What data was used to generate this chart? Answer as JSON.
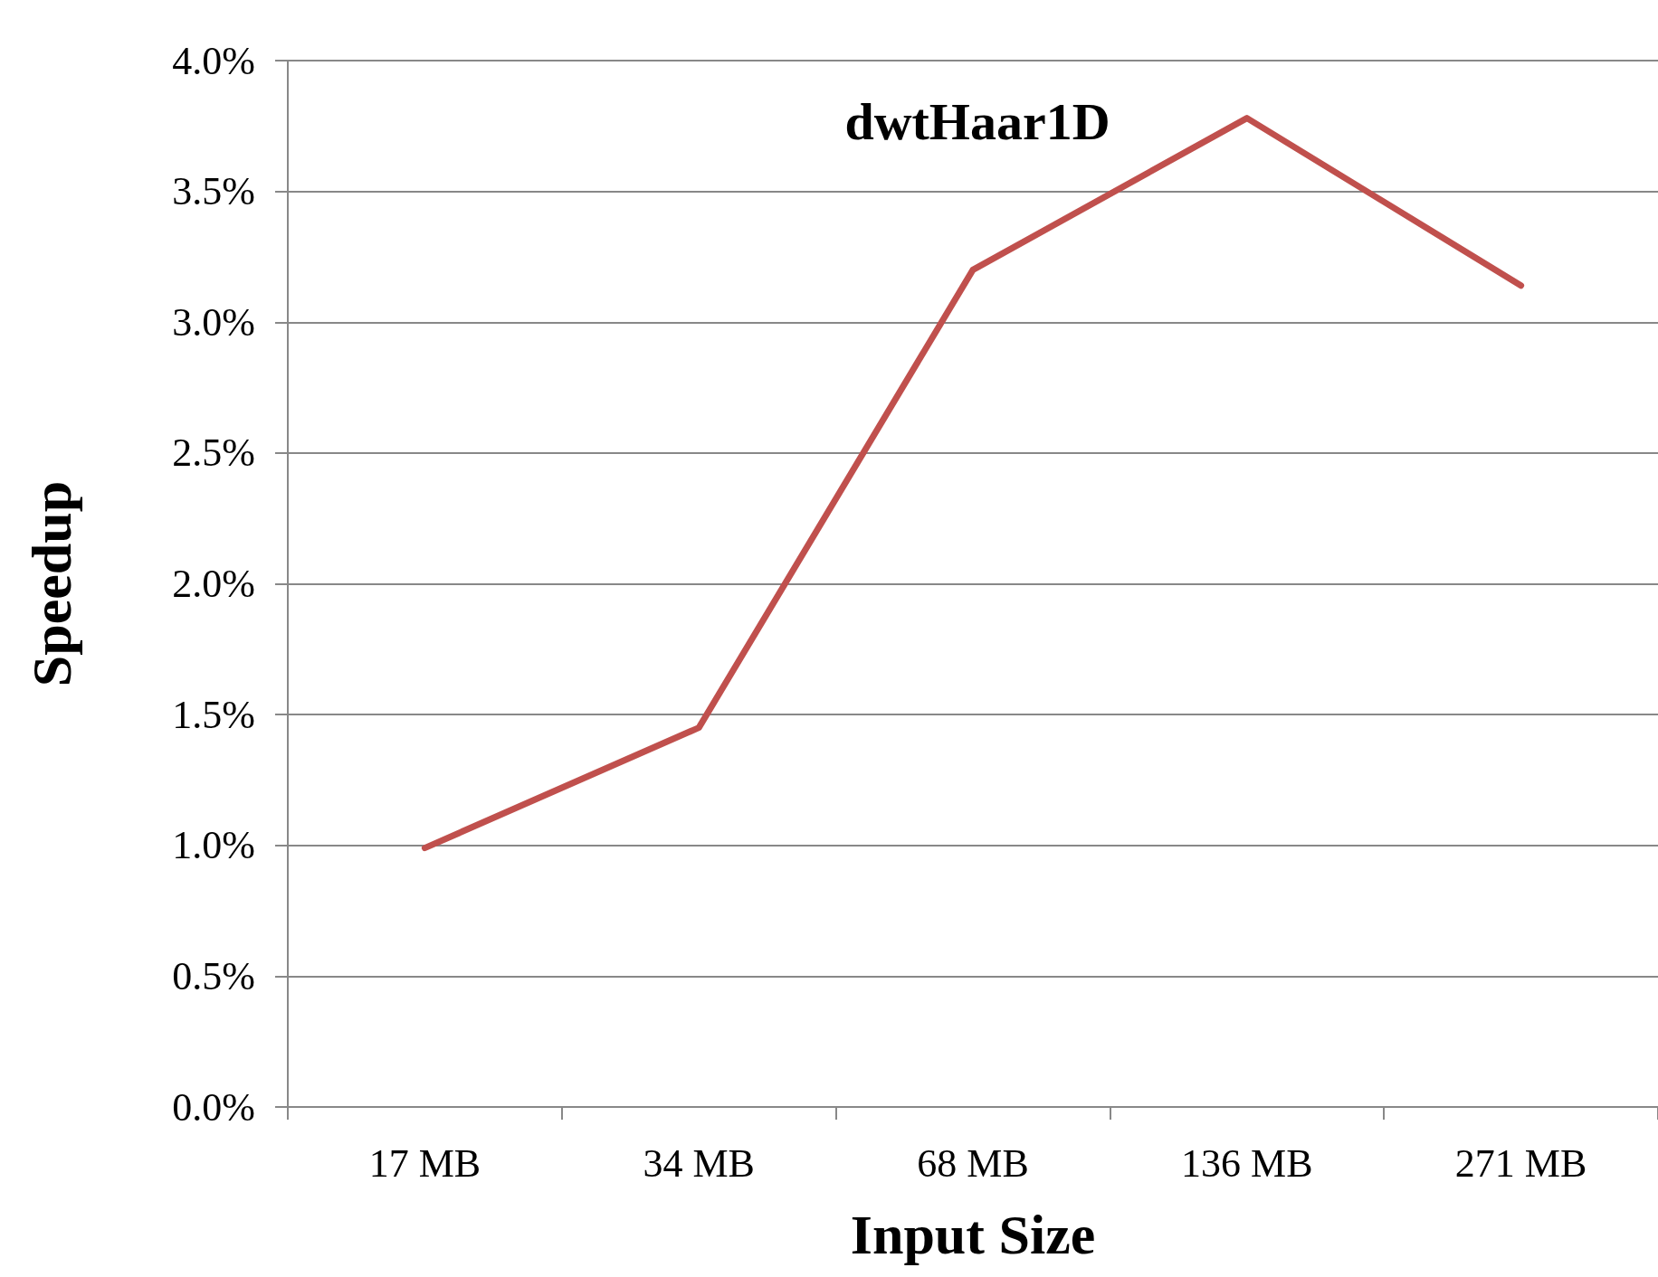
{
  "chart_data": {
    "type": "line",
    "title": "dwtHaar1D",
    "xlabel": "Input Size",
    "ylabel": "Speedup",
    "categories": [
      "17 MB",
      "34 MB",
      "68 MB",
      "136 MB",
      "271 MB"
    ],
    "series": [
      {
        "color": "#c0504d",
        "values": [
          0.99,
          1.45,
          3.2,
          3.78,
          3.14
        ]
      }
    ],
    "ylim": [
      0,
      4
    ],
    "yticks": [
      {
        "value": 0,
        "label": "0.0%"
      },
      {
        "value": 0.5,
        "label": "0.5%"
      },
      {
        "value": 1,
        "label": "1.0%"
      },
      {
        "value": 1.5,
        "label": "1.5%"
      },
      {
        "value": 2,
        "label": "2.0%"
      },
      {
        "value": 2.5,
        "label": "2.5%"
      },
      {
        "value": 3,
        "label": "3.0%"
      },
      {
        "value": 3.5,
        "label": "3.5%"
      },
      {
        "value": 4,
        "label": "4.0%"
      }
    ],
    "grid": "y",
    "marker": "none",
    "line_style": "solid"
  }
}
